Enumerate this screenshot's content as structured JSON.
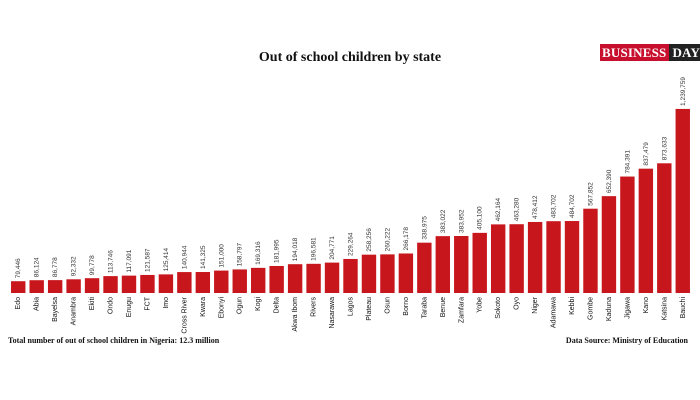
{
  "chart_data": {
    "type": "bar",
    "title": "Out of school children by state",
    "xlabel": "",
    "ylabel": "",
    "ylim": [
      0,
      1300000
    ],
    "grid": false,
    "legend": "none",
    "bar_color": "#c8161d",
    "categories": [
      "Edo",
      "Abia",
      "Bayelsa",
      "Anambra",
      "Ekiti",
      "Ondo",
      "Enugu",
      "FCT",
      "Imo",
      "Cross River",
      "Kwara",
      "Ebonyi",
      "Ogun",
      "Kogi",
      "Delta",
      "Akwa Ibom",
      "Rivers",
      "Nasarawa",
      "Lagos",
      "Plateau",
      "Osun",
      "Borno",
      "Taraba",
      "Benue",
      "Zamfara",
      "Yobe",
      "Sokoto",
      "Oyo",
      "Niger",
      "Adamawa",
      "Kebbi",
      "Gombe",
      "Kaduna",
      "Jigawa",
      "Kano",
      "Katsina",
      "Bauchi"
    ],
    "values": [
      79446,
      86124,
      86778,
      92332,
      99778,
      113746,
      117091,
      121587,
      125414,
      140944,
      141325,
      151000,
      158797,
      169316,
      181995,
      194018,
      196581,
      204771,
      229264,
      258256,
      260222,
      266178,
      338975,
      383022,
      383952,
      405100,
      462164,
      463280,
      478412,
      483702,
      484702,
      567852,
      652390,
      784391,
      837479,
      873633,
      1239759
    ],
    "data_labels": [
      "79,446",
      "86,124",
      "86,778",
      "92,332",
      "99,778",
      "113,746",
      "117,091",
      "121,587",
      "125,414",
      "140,944",
      "141,325",
      "151,000",
      "158,797",
      "169,316",
      "181,995",
      "194,018",
      "196,581",
      "204,771",
      "229,264",
      "258,256",
      "260,222",
      "266,178",
      "338,975",
      "383,022",
      "383,952",
      "405,100",
      "462,164",
      "463,280",
      "478,412",
      "483,702",
      "484,702",
      "567,852",
      "652,390",
      "784,391",
      "837,479",
      "873,633",
      "1,239,759"
    ]
  },
  "logo": {
    "part1": "BUSINESS",
    "part2": "DAY"
  },
  "footer": {
    "left": "Total number of out of school children in Nigeria: 12.3 million",
    "right": "Data Source: Ministry of Education"
  }
}
